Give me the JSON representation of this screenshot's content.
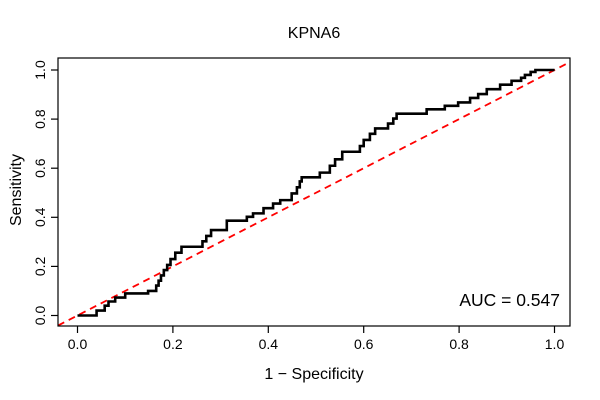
{
  "page": {
    "background": "#ffffff"
  },
  "chart_data": {
    "type": "line",
    "subtype": "roc-step-curve",
    "title": "KPNA6",
    "xlabel": "1 − Specificity",
    "ylabel": "Sensitivity",
    "annotation": "AUC = 0.547",
    "auc": 0.547,
    "xlim": [
      0,
      1
    ],
    "ylim": [
      0,
      1
    ],
    "grid": false,
    "legend": "none",
    "x_ticks": [
      0.0,
      0.2,
      0.4,
      0.6,
      0.8,
      1.0
    ],
    "x_tick_labels": [
      "0.0",
      "0.2",
      "0.4",
      "0.6",
      "0.8",
      "1.0"
    ],
    "y_ticks": [
      0.0,
      0.2,
      0.4,
      0.6,
      0.8,
      1.0
    ],
    "y_tick_labels": [
      "0.0",
      "0.2",
      "0.4",
      "0.6",
      "0.8",
      "1.0"
    ],
    "colors": {
      "curve": "#000000",
      "diagonal": "#ff0000",
      "text": "#000000"
    },
    "series": [
      {
        "name": "ROC curve",
        "color": "#000000",
        "style": "solid",
        "points": [
          [
            0.0,
            0.0
          ],
          [
            0.04,
            0.0
          ],
          [
            0.04,
            0.02
          ],
          [
            0.057,
            0.02
          ],
          [
            0.057,
            0.04
          ],
          [
            0.065,
            0.04
          ],
          [
            0.065,
            0.057
          ],
          [
            0.079,
            0.057
          ],
          [
            0.079,
            0.073
          ],
          [
            0.1,
            0.073
          ],
          [
            0.1,
            0.09
          ],
          [
            0.148,
            0.09
          ],
          [
            0.148,
            0.1
          ],
          [
            0.165,
            0.1
          ],
          [
            0.165,
            0.122
          ],
          [
            0.17,
            0.122
          ],
          [
            0.17,
            0.142
          ],
          [
            0.175,
            0.142
          ],
          [
            0.175,
            0.163
          ],
          [
            0.181,
            0.163
          ],
          [
            0.181,
            0.185
          ],
          [
            0.188,
            0.185
          ],
          [
            0.188,
            0.206
          ],
          [
            0.195,
            0.206
          ],
          [
            0.195,
            0.23
          ],
          [
            0.205,
            0.23
          ],
          [
            0.205,
            0.256
          ],
          [
            0.218,
            0.256
          ],
          [
            0.218,
            0.28
          ],
          [
            0.262,
            0.28
          ],
          [
            0.262,
            0.302
          ],
          [
            0.27,
            0.302
          ],
          [
            0.27,
            0.324
          ],
          [
            0.28,
            0.324
          ],
          [
            0.28,
            0.348
          ],
          [
            0.313,
            0.348
          ],
          [
            0.313,
            0.386
          ],
          [
            0.355,
            0.386
          ],
          [
            0.355,
            0.402
          ],
          [
            0.368,
            0.402
          ],
          [
            0.368,
            0.416
          ],
          [
            0.39,
            0.416
          ],
          [
            0.39,
            0.437
          ],
          [
            0.41,
            0.437
          ],
          [
            0.41,
            0.456
          ],
          [
            0.425,
            0.456
          ],
          [
            0.425,
            0.47
          ],
          [
            0.449,
            0.47
          ],
          [
            0.449,
            0.497
          ],
          [
            0.46,
            0.497
          ],
          [
            0.46,
            0.522
          ],
          [
            0.466,
            0.522
          ],
          [
            0.466,
            0.546
          ],
          [
            0.47,
            0.546
          ],
          [
            0.47,
            0.563
          ],
          [
            0.508,
            0.563
          ],
          [
            0.508,
            0.582
          ],
          [
            0.529,
            0.582
          ],
          [
            0.529,
            0.61
          ],
          [
            0.54,
            0.61
          ],
          [
            0.54,
            0.636
          ],
          [
            0.555,
            0.636
          ],
          [
            0.555,
            0.667
          ],
          [
            0.592,
            0.667
          ],
          [
            0.592,
            0.69
          ],
          [
            0.6,
            0.69
          ],
          [
            0.6,
            0.715
          ],
          [
            0.613,
            0.715
          ],
          [
            0.613,
            0.74
          ],
          [
            0.624,
            0.74
          ],
          [
            0.624,
            0.762
          ],
          [
            0.651,
            0.762
          ],
          [
            0.651,
            0.782
          ],
          [
            0.662,
            0.782
          ],
          [
            0.662,
            0.802
          ],
          [
            0.669,
            0.802
          ],
          [
            0.669,
            0.822
          ],
          [
            0.732,
            0.822
          ],
          [
            0.732,
            0.84
          ],
          [
            0.77,
            0.84
          ],
          [
            0.77,
            0.854
          ],
          [
            0.798,
            0.854
          ],
          [
            0.798,
            0.868
          ],
          [
            0.823,
            0.868
          ],
          [
            0.823,
            0.886
          ],
          [
            0.84,
            0.886
          ],
          [
            0.84,
            0.902
          ],
          [
            0.858,
            0.902
          ],
          [
            0.858,
            0.922
          ],
          [
            0.886,
            0.922
          ],
          [
            0.886,
            0.94
          ],
          [
            0.91,
            0.94
          ],
          [
            0.91,
            0.956
          ],
          [
            0.93,
            0.956
          ],
          [
            0.93,
            0.968
          ],
          [
            0.938,
            0.968
          ],
          [
            0.938,
            0.98
          ],
          [
            0.95,
            0.98
          ],
          [
            0.95,
            0.992
          ],
          [
            0.96,
            0.992
          ],
          [
            0.96,
            1.0
          ],
          [
            1.0,
            1.0
          ]
        ]
      },
      {
        "name": "chance line",
        "color": "#ff0000",
        "style": "dashed",
        "points": [
          [
            0,
            0
          ],
          [
            1,
            1
          ]
        ],
        "extend_to_box": true
      }
    ]
  }
}
